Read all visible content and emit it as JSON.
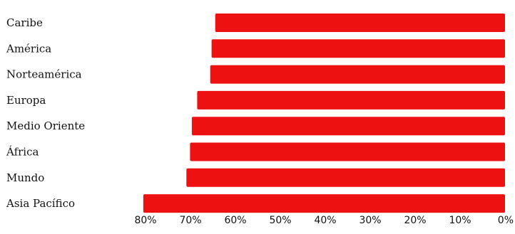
{
  "chart_data": {
    "type": "bar",
    "orientation": "horizontal",
    "x_axis": "reversed",
    "categories": [
      "Caribe",
      "América",
      "Norteamérica",
      "Europa",
      "Medio Oriente",
      "África",
      "Mundo",
      "Asia Pacífico"
    ],
    "values": [
      64.5,
      65.3,
      65.6,
      68.5,
      69.7,
      70.1,
      70.9,
      80.5
    ],
    "data_labels": [
      "",
      "",
      "",
      "",
      "",
      "",
      "",
      ""
    ],
    "xticks": [
      "80%",
      "70%",
      "60%",
      "50%",
      "40%",
      "30%",
      "20%",
      "10%",
      "0%"
    ],
    "xtick_values": [
      80,
      70,
      60,
      50,
      40,
      30,
      20,
      10,
      0
    ],
    "xlim": [
      0,
      80
    ],
    "bar_color": "#ee1111",
    "grid": false,
    "title": "",
    "xlabel": "",
    "ylabel": ""
  }
}
